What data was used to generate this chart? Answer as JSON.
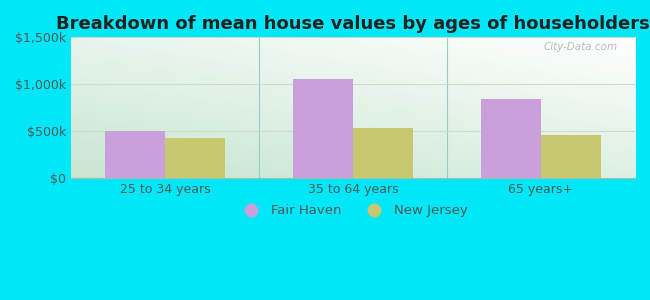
{
  "title": "Breakdown of mean house values by ages of householders",
  "categories": [
    "25 to 34 years",
    "35 to 64 years",
    "65 years+"
  ],
  "fair_haven_values": [
    500000,
    1060000,
    840000
  ],
  "new_jersey_values": [
    430000,
    535000,
    460000
  ],
  "fair_haven_color": "#c9a0dc",
  "new_jersey_color": "#c8c870",
  "ylim": [
    0,
    1500000
  ],
  "yticks": [
    0,
    500000,
    1000000,
    1500000
  ],
  "ytick_labels": [
    "$0",
    "$500k",
    "$1,000k",
    "$1,500k"
  ],
  "background_outer": "#00e8f8",
  "legend_fair_haven": "Fair Haven",
  "legend_new_jersey": "New Jersey",
  "bar_width": 0.32,
  "watermark": "City-Data.com",
  "title_fontsize": 13,
  "tick_fontsize": 9,
  "legend_fontsize": 9.5,
  "text_color": "#4a5a5a",
  "separator_color": "#99cccc",
  "grid_color": "#ccddcc"
}
